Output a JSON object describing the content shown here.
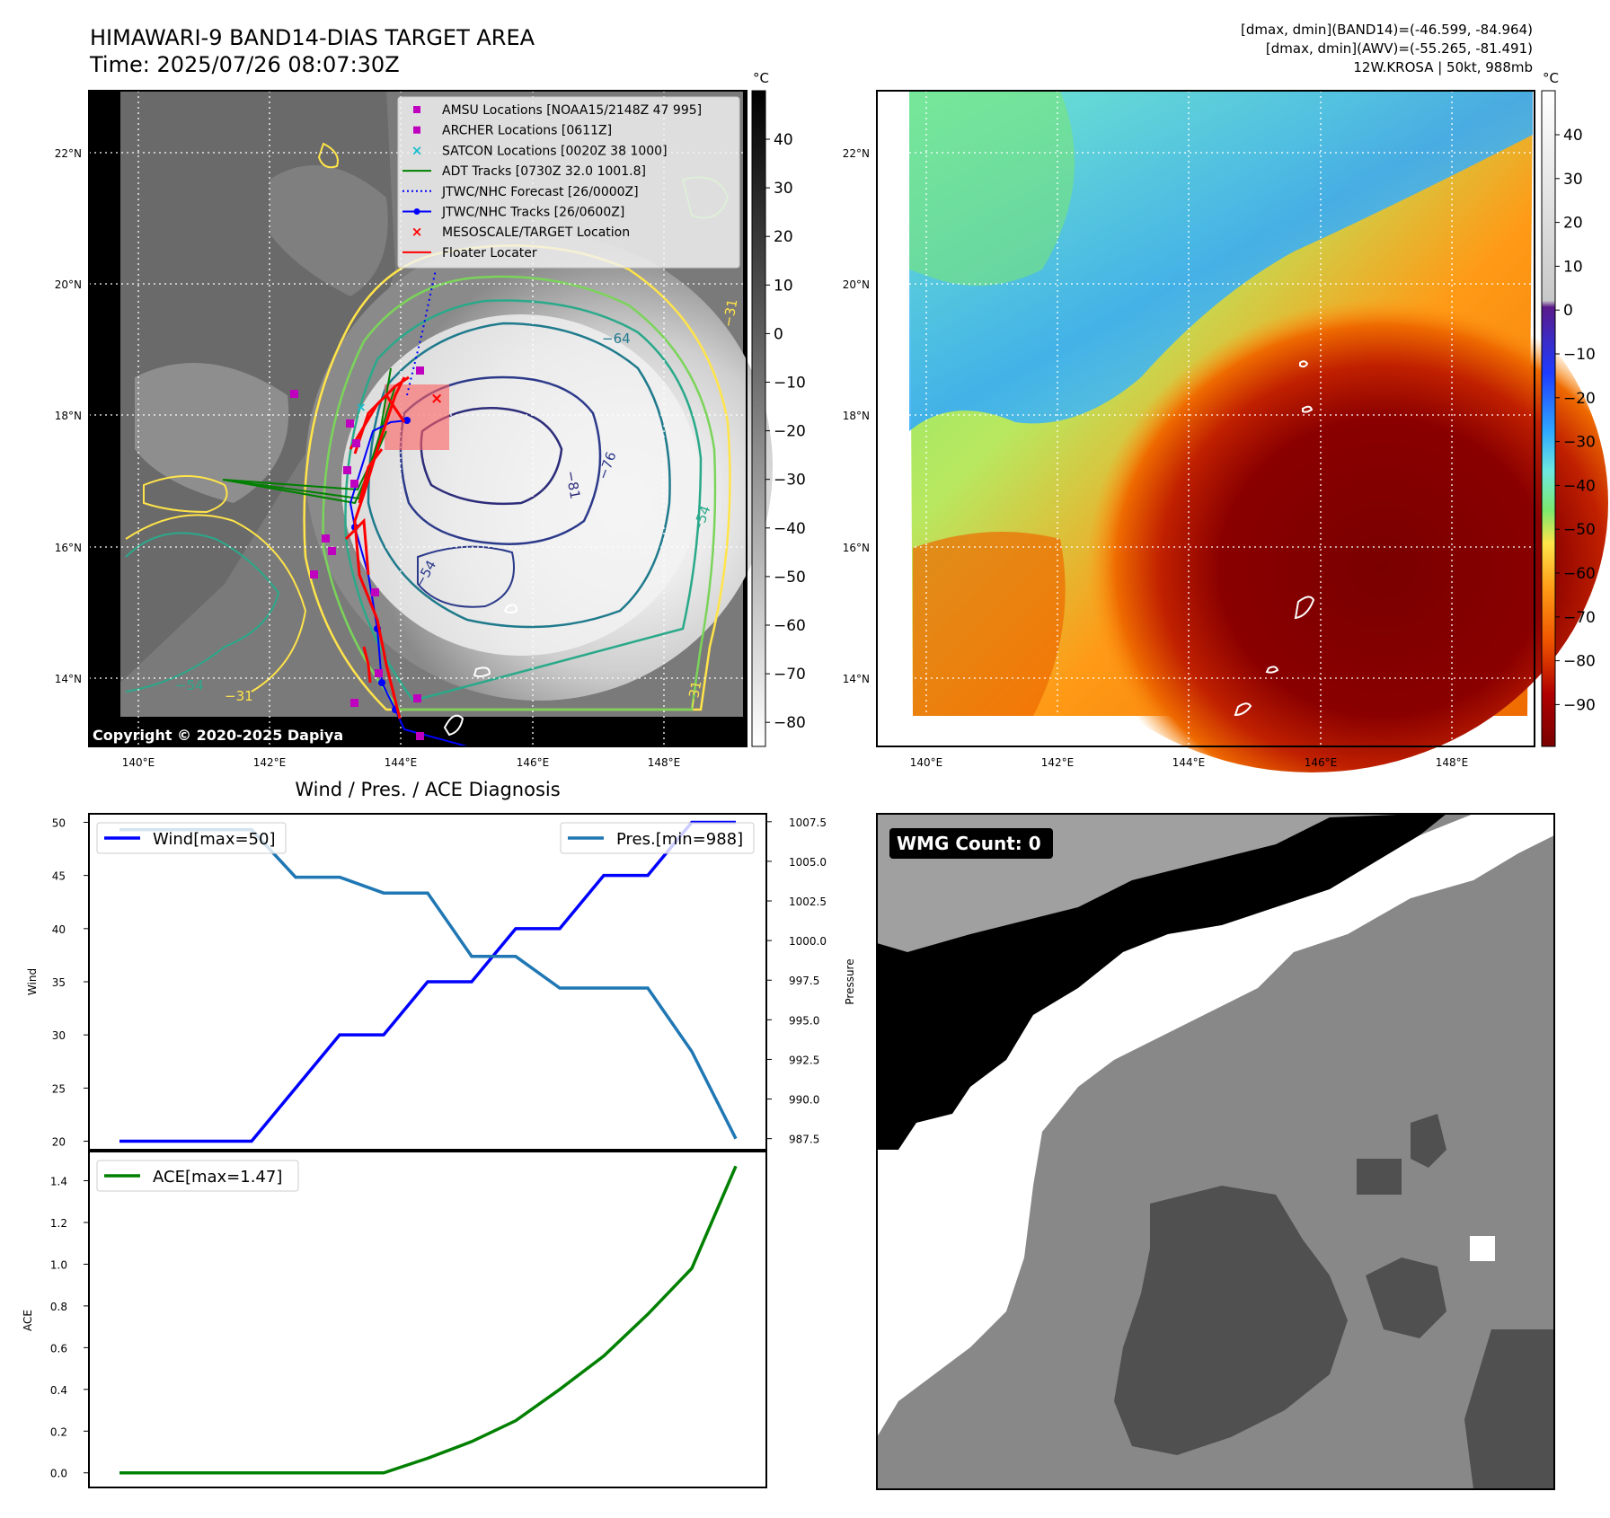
{
  "header": {
    "title_line1": "HIMAWARI-9 BAND14-DIAS TARGET AREA",
    "title_line2": "Time: 2025/07/26 08:07:30Z",
    "info_line1": "[dmax, dmin](BAND14)=(-46.599, -84.964)",
    "info_line2": "[dmax, dmin](AWV)=(-55.265, -81.491)",
    "info_line3": "12W.KROSA | 50kt, 988mb"
  },
  "map": {
    "lat_labels": [
      "22°N",
      "20°N",
      "18°N",
      "16°N",
      "14°N"
    ],
    "lon_labels": [
      "140°E",
      "142°E",
      "144°E",
      "146°E",
      "148°E"
    ],
    "copyright": "Copyright © 2020-2025 Dapiya",
    "contour_labels": [
      "−64",
      "−76",
      "−81",
      "−54",
      "−31",
      "−54",
      "−54",
      "−31",
      "−31"
    ],
    "legend": [
      {
        "label": "AMSU Locations [NOAA15/2148Z 47 995]",
        "marker": "square",
        "color": "#bf00bf"
      },
      {
        "label": "ARCHER Locations [0611Z]",
        "marker": "square",
        "color": "#bf00bf"
      },
      {
        "label": "SATCON Locations [0020Z 38 1000]",
        "marker": "x",
        "color": "#17becf"
      },
      {
        "label": "ADT Tracks [0730Z 32.0 1001.8]",
        "marker": "line",
        "color": "#008000"
      },
      {
        "label": "JTWC/NHC Forecast [26/0000Z]",
        "marker": "dotted",
        "color": "#0000ff"
      },
      {
        "label": "JTWC/NHC Tracks [26/0600Z]",
        "marker": "dotline",
        "color": "#0000ff"
      },
      {
        "label": "MESOSCALE/TARGET Location",
        "marker": "x",
        "color": "#ff0000"
      },
      {
        "label": "Floater Locater",
        "marker": "line",
        "color": "#ff0000"
      }
    ],
    "colorbar_left": {
      "unit": "°C",
      "ticks": [
        "40",
        "30",
        "20",
        "10",
        "0",
        "−10",
        "−20",
        "−30",
        "−40",
        "−50",
        "−60",
        "−70",
        "−80"
      ]
    },
    "colorbar_right": {
      "unit": "°C",
      "ticks": [
        "40",
        "30",
        "20",
        "10",
        "0",
        "−10",
        "−20",
        "−30",
        "−40",
        "−50",
        "−60",
        "−70",
        "−80",
        "−90"
      ]
    }
  },
  "wmg": {
    "label": "WMG Count: 0"
  },
  "chart_data": [
    {
      "type": "line",
      "title": "Wind / Pres. / ACE Diagnosis",
      "ylabel": "Wind",
      "y2label": "Pressure",
      "ylim": [
        19.2,
        50.8
      ],
      "y2lim": [
        986.8,
        1008.0
      ],
      "yticks": [
        "20",
        "25",
        "30",
        "35",
        "40",
        "45",
        "50"
      ],
      "y2ticks": [
        "987.5",
        "990.0",
        "992.5",
        "995.0",
        "997.5",
        "1000.0",
        "1002.5",
        "1005.0",
        "1007.5"
      ],
      "x": [
        0,
        1,
        2,
        3,
        4,
        5,
        6,
        7,
        8,
        9,
        10,
        11,
        12,
        13,
        14
      ],
      "series": [
        {
          "name": "Wind[max=50]",
          "axis": "left",
          "color": "#0000ff",
          "values": [
            20,
            20,
            20,
            20,
            25,
            30,
            30,
            35,
            35,
            40,
            40,
            45,
            45,
            50,
            50
          ]
        },
        {
          "name": "Pres.[min=988]",
          "axis": "right",
          "color": "#1f77b4",
          "values": [
            1007,
            1007,
            1007,
            1007,
            1004,
            1004,
            1003,
            1003,
            999,
            999,
            997,
            997,
            997,
            993,
            987.5
          ]
        }
      ]
    },
    {
      "type": "line",
      "ylabel": "ACE",
      "ylim": [
        -0.07,
        1.54
      ],
      "yticks": [
        "0.0",
        "0.2",
        "0.4",
        "0.6",
        "0.8",
        "1.0",
        "1.2",
        "1.4"
      ],
      "x": [
        0,
        1,
        2,
        3,
        4,
        5,
        6,
        7,
        8,
        9,
        10,
        11,
        12,
        13,
        14
      ],
      "series": [
        {
          "name": "ACE[max=1.47]",
          "color": "#008000",
          "values": [
            0,
            0,
            0,
            0,
            0,
            0,
            0,
            0.07,
            0.15,
            0.25,
            0.4,
            0.56,
            0.76,
            0.98,
            1.47
          ]
        }
      ]
    }
  ]
}
